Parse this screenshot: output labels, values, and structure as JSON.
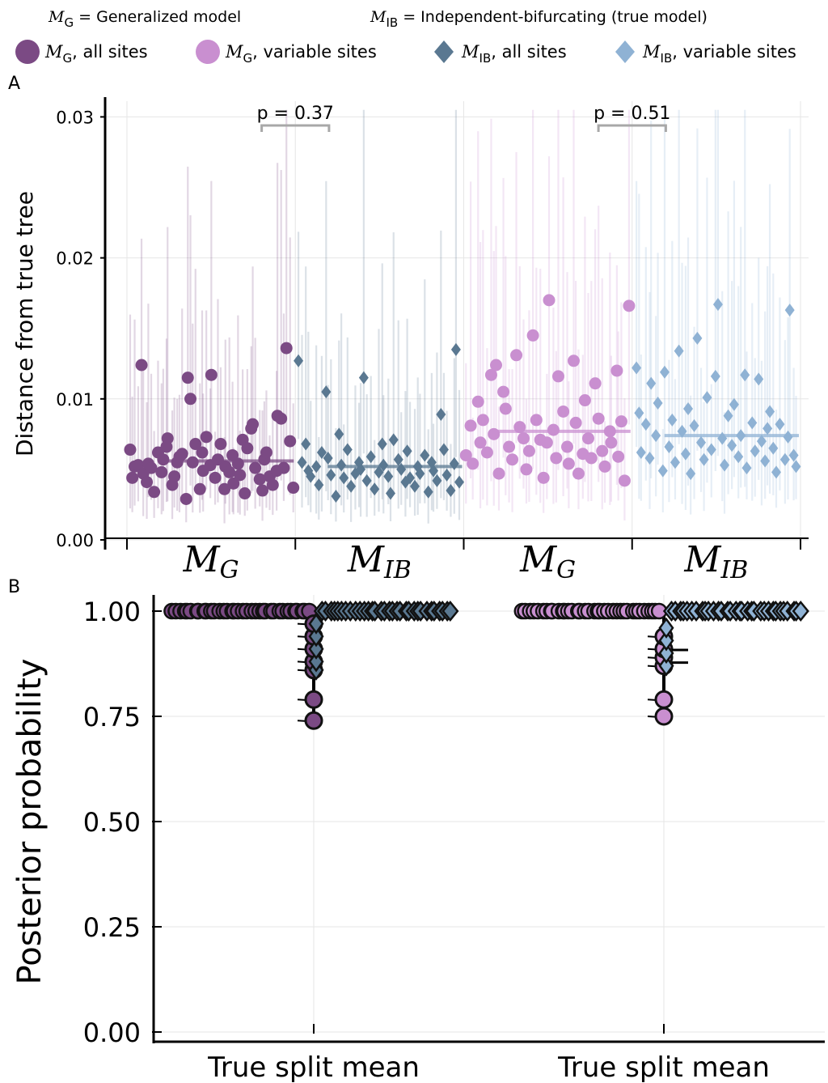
{
  "header": {
    "mg_def": {
      "symbol": "M",
      "sub": "G",
      "text": " = Generalized model"
    },
    "mib_def": {
      "symbol": "M",
      "sub": "IB",
      "text": " = Independent-bifurcating (true model)"
    }
  },
  "legend": [
    {
      "symbol": "M",
      "sub": "G",
      "text": ", all sites",
      "marker": "circle",
      "color": "#7b4a84"
    },
    {
      "symbol": "M",
      "sub": "G",
      "text": ", variable sites",
      "marker": "circle",
      "color": "#c98fd0"
    },
    {
      "symbol": "M",
      "sub": "IB",
      "text": ", all sites",
      "marker": "diamond",
      "color": "#5a7891"
    },
    {
      "symbol": "M",
      "sub": "IB",
      "text": ", variable sites",
      "marker": "diamond",
      "color": "#8fb2d4"
    }
  ],
  "colors": {
    "mg_all": "#7b4a84",
    "mg_var": "#c98fd0",
    "mib_all": "#5a7891",
    "mib_var": "#8fb2d4",
    "grid": "#e6e6e6",
    "bracket": "#a8a8a8"
  },
  "chart_data": [
    {
      "panel": "A",
      "type": "scatter",
      "ylabel": "Distance from true tree",
      "ylim": [
        0,
        0.031
      ],
      "yticks": [
        "0.00",
        "0.01",
        "0.02",
        "0.03"
      ],
      "ytick_values": [
        0,
        0.01,
        0.02,
        0.03
      ],
      "grid": true,
      "categories": [
        {
          "symbol": "M",
          "sub": "G"
        },
        {
          "symbol": "M",
          "sub": "IB"
        },
        {
          "symbol": "M",
          "sub": "G"
        },
        {
          "symbol": "M",
          "sub": "IB"
        }
      ],
      "series": [
        {
          "key": "mg_all",
          "marker": "circle",
          "mean": 0.0056,
          "values": [
            0.0064,
            0.0044,
            0.0052,
            0.0053,
            0.0124,
            0.0047,
            0.0041,
            0.0054,
            0.0051,
            0.0034,
            0.0062,
            0.0048,
            0.0057,
            0.0066,
            0.0072,
            0.0039,
            0.0045,
            0.0055,
            0.0059,
            0.0061,
            0.0029,
            0.0115,
            0.01,
            0.0055,
            0.0068,
            0.0036,
            0.0062,
            0.0049,
            0.0073,
            0.0053,
            0.0117,
            0.0044,
            0.0057,
            0.0068,
            0.0036,
            0.0052,
            0.0048,
            0.006,
            0.004,
            0.0054,
            0.0046,
            0.0071,
            0.0033,
            0.0065,
            0.0079,
            0.0082,
            0.0051,
            0.0043,
            0.0035,
            0.0057,
            0.0062,
            0.0045,
            0.0039,
            0.0049,
            0.0088,
            0.0086,
            0.0051,
            0.0136,
            0.007,
            0.0037
          ]
        },
        {
          "key": "mib_all",
          "marker": "diamond",
          "mean": 0.0052,
          "values": [
            0.0127,
            0.0055,
            0.0068,
            0.0049,
            0.0045,
            0.0052,
            0.0039,
            0.0062,
            0.0105,
            0.0058,
            0.0046,
            0.0031,
            0.0075,
            0.0053,
            0.0044,
            0.0064,
            0.0038,
            0.0047,
            0.0055,
            0.005,
            0.0115,
            0.0042,
            0.0059,
            0.0036,
            0.0048,
            0.0068,
            0.0053,
            0.0045,
            0.0033,
            0.0071,
            0.0057,
            0.005,
            0.0041,
            0.0063,
            0.0044,
            0.0038,
            0.0052,
            0.0047,
            0.006,
            0.0034,
            0.0055,
            0.0049,
            0.0042,
            0.0089,
            0.0064,
            0.0046,
            0.0035,
            0.0054,
            0.0135,
            0.0041
          ]
        },
        {
          "key": "mg_var",
          "marker": "circle",
          "mean": 0.0077,
          "values": [
            0.006,
            0.0081,
            0.0054,
            0.0098,
            0.0069,
            0.0085,
            0.0062,
            0.0117,
            0.0075,
            0.0124,
            0.0047,
            0.0105,
            0.0093,
            0.0066,
            0.0057,
            0.0131,
            0.008,
            0.0072,
            0.005,
            0.0063,
            0.0145,
            0.0085,
            0.0071,
            0.0044,
            0.0069,
            0.017,
            0.0078,
            0.0058,
            0.0116,
            0.0091,
            0.0066,
            0.0054,
            0.0127,
            0.0083,
            0.0047,
            0.0061,
            0.0099,
            0.0072,
            0.0058,
            0.0111,
            0.0086,
            0.0063,
            0.0052,
            0.0077,
            0.0069,
            0.012,
            0.0059,
            0.0084,
            0.0042,
            0.0166
          ]
        },
        {
          "key": "mib_var",
          "marker": "diamond",
          "mean": 0.0074,
          "values": [
            0.0122,
            0.009,
            0.0062,
            0.0082,
            0.0058,
            0.0111,
            0.0074,
            0.0097,
            0.0049,
            0.0119,
            0.0066,
            0.0085,
            0.0055,
            0.0134,
            0.0077,
            0.0061,
            0.0093,
            0.0047,
            0.0081,
            0.0143,
            0.0069,
            0.0057,
            0.0101,
            0.0064,
            0.0116,
            0.0167,
            0.0072,
            0.0053,
            0.0088,
            0.0067,
            0.0096,
            0.0059,
            0.0074,
            0.0117,
            0.0051,
            0.0083,
            0.0063,
            0.0114,
            0.007,
            0.0056,
            0.0079,
            0.0091,
            0.0065,
            0.0048,
            0.0082,
            0.0057,
            0.0073,
            0.0163,
            0.006,
            0.0052
          ]
        }
      ],
      "annotations": [
        {
          "text": "p = 0.37",
          "between": [
            "mg_all",
            "mib_all"
          ]
        },
        {
          "text": "p = 0.51",
          "between": [
            "mg_var",
            "mib_var"
          ]
        }
      ]
    },
    {
      "panel": "B",
      "type": "scatter",
      "ylabel": "Posterior probability",
      "ylim": [
        0,
        1
      ],
      "yticks": [
        "0.00",
        "0.25",
        "0.50",
        "0.75",
        "1.00"
      ],
      "ytick_values": [
        0,
        0.25,
        0.5,
        0.75,
        1.0
      ],
      "grid": true,
      "groups": [
        {
          "xlabel": "True split mean",
          "series": [
            {
              "key": "mg_all",
              "marker": "circle",
              "values": [
                0.74,
                0.79,
                0.86,
                0.88,
                0.91,
                0.94,
                0.97,
                1.0
              ]
            },
            {
              "key": "mib_all",
              "marker": "diamond",
              "values": [
                0.86,
                0.88,
                0.91,
                0.94,
                0.97,
                1.0
              ]
            }
          ]
        },
        {
          "xlabel": "True split mean",
          "series": [
            {
              "key": "mg_var",
              "marker": "circle",
              "values": [
                0.75,
                0.79,
                0.87,
                0.89,
                0.91,
                0.94,
                1.0
              ]
            },
            {
              "key": "mib_var",
              "marker": "diamond",
              "values": [
                0.87,
                0.9,
                0.93,
                0.96,
                1.0
              ]
            }
          ]
        }
      ]
    }
  ],
  "panel_letters": [
    "A",
    "B"
  ]
}
